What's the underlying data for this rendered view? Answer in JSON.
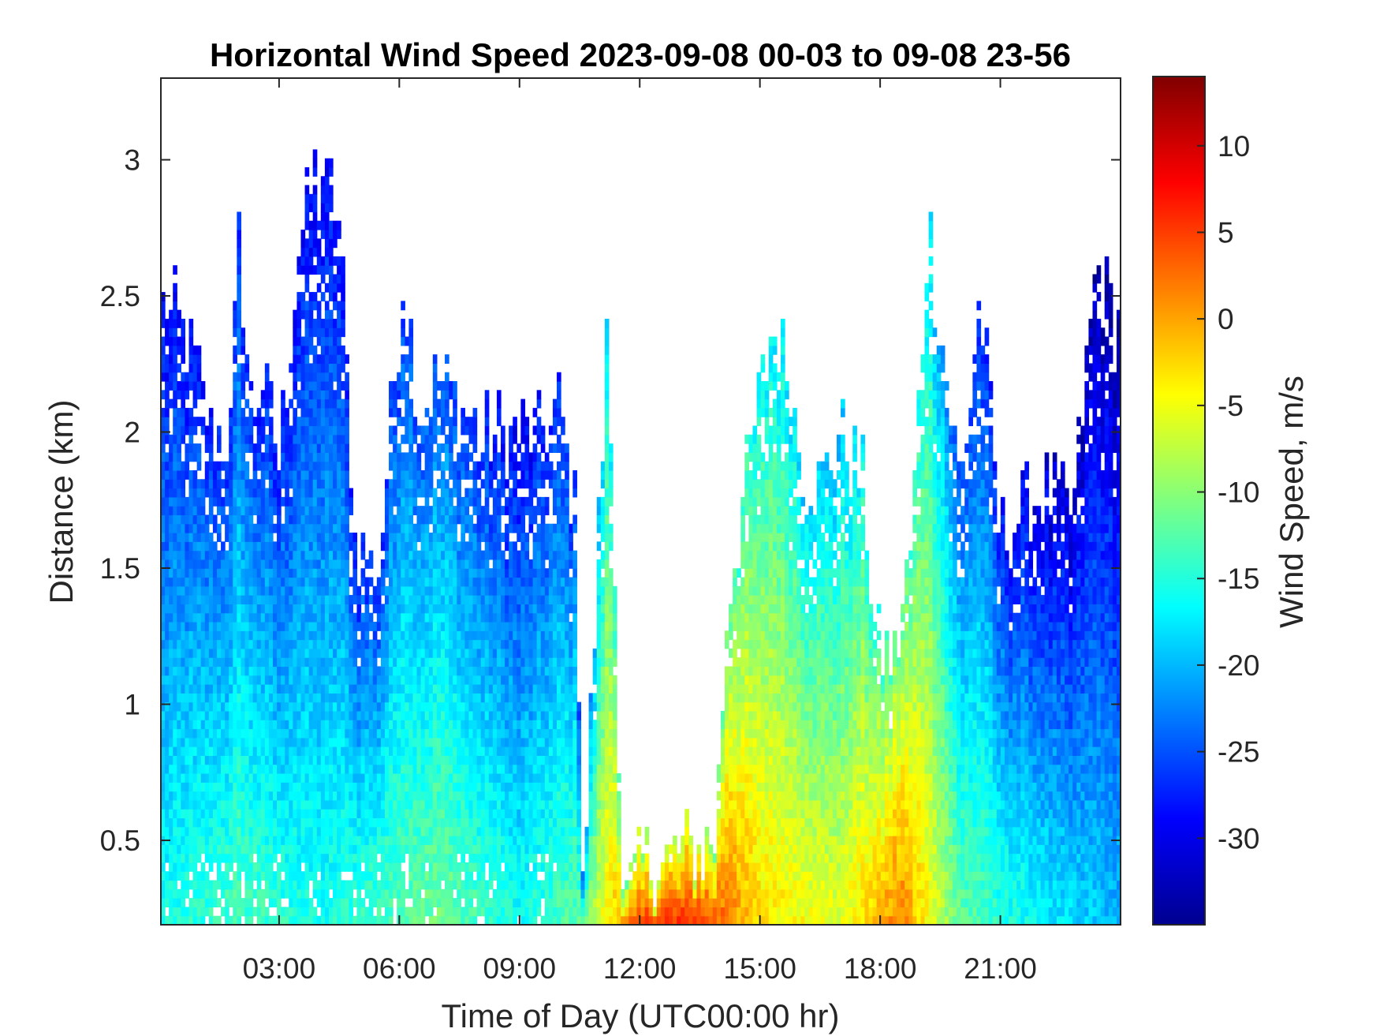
{
  "chart_data": {
    "type": "heatmap",
    "title": "Horizontal Wind Speed 2023-09-08 00-03 to 09-08 23-56",
    "xlabel": "Time of Day (UTC00:00 hr)",
    "ylabel": "Distance (km)",
    "colorbar_label": "Wind Speed, m/s",
    "x_ticks": [
      "03:00",
      "06:00",
      "09:00",
      "12:00",
      "15:00",
      "18:00",
      "21:00"
    ],
    "x_tick_hours": [
      3,
      6,
      9,
      12,
      15,
      18,
      21
    ],
    "xlim_hours": [
      0.05,
      24
    ],
    "y_ticks": [
      "0.5",
      "1",
      "1.5",
      "2",
      "2.5",
      "3"
    ],
    "y_tick_values": [
      0.5,
      1,
      1.5,
      2,
      2.5,
      3
    ],
    "ylim": [
      0.19,
      3.3
    ],
    "colorbar_ticks": [
      "10",
      "5",
      "0",
      "-5",
      "-10",
      "-15",
      "-20",
      "-25",
      "-30"
    ],
    "colorbar_tick_values": [
      10,
      5,
      0,
      -5,
      -10,
      -15,
      -20,
      -25,
      -30
    ],
    "clim": [
      -35,
      14
    ],
    "colormap": "jet",
    "grid": false,
    "profile_top_km": [
      [
        0.1,
        2.5
      ],
      [
        0.5,
        2.4
      ],
      [
        1.0,
        2.2
      ],
      [
        1.3,
        2.0
      ],
      [
        1.8,
        2.0
      ],
      [
        2.0,
        2.7
      ],
      [
        2.3,
        2.1
      ],
      [
        2.6,
        2.2
      ],
      [
        3.0,
        1.9
      ],
      [
        3.5,
        2.7
      ],
      [
        4.0,
        3.0
      ],
      [
        4.5,
        2.8
      ],
      [
        4.9,
        1.6
      ],
      [
        5.5,
        1.5
      ],
      [
        6.1,
        2.6
      ],
      [
        6.5,
        2.1
      ],
      [
        7.0,
        2.2
      ],
      [
        7.5,
        2.1
      ],
      [
        8.0,
        2.0
      ],
      [
        8.5,
        2.0
      ],
      [
        9.0,
        2.0
      ],
      [
        9.5,
        2.0
      ],
      [
        10.0,
        2.1
      ],
      [
        10.4,
        1.7
      ],
      [
        10.6,
        0.32
      ],
      [
        11.2,
        2.4
      ],
      [
        11.6,
        0.25
      ],
      [
        12.0,
        0.4
      ],
      [
        13.0,
        0.45
      ],
      [
        13.9,
        0.5
      ],
      [
        14.2,
        1.4
      ],
      [
        15.3,
        2.4
      ],
      [
        15.8,
        2.2
      ],
      [
        16.0,
        1.9
      ],
      [
        16.5,
        1.8
      ],
      [
        17.0,
        2.0
      ],
      [
        17.6,
        1.8
      ],
      [
        17.9,
        1.2
      ],
      [
        18.4,
        1.2
      ],
      [
        18.8,
        1.6
      ],
      [
        19.2,
        2.8
      ],
      [
        19.5,
        2.4
      ],
      [
        20.0,
        1.8
      ],
      [
        20.5,
        2.5
      ],
      [
        21.0,
        1.6
      ],
      [
        22.0,
        1.8
      ],
      [
        22.8,
        1.7
      ],
      [
        23.4,
        2.6
      ],
      [
        23.9,
        2.4
      ]
    ],
    "surface_speed_m_s": [
      [
        0.0,
        -16
      ],
      [
        2.0,
        -13
      ],
      [
        4.0,
        -16
      ],
      [
        5.0,
        -14
      ],
      [
        7.0,
        -11
      ],
      [
        9.0,
        -16
      ],
      [
        10.5,
        -12
      ],
      [
        12.0,
        5
      ],
      [
        13.5,
        6
      ],
      [
        15.0,
        -3
      ],
      [
        17.0,
        -6
      ],
      [
        18.5,
        2
      ],
      [
        20.0,
        -12
      ],
      [
        22.0,
        -17
      ],
      [
        24.0,
        -20
      ]
    ]
  }
}
